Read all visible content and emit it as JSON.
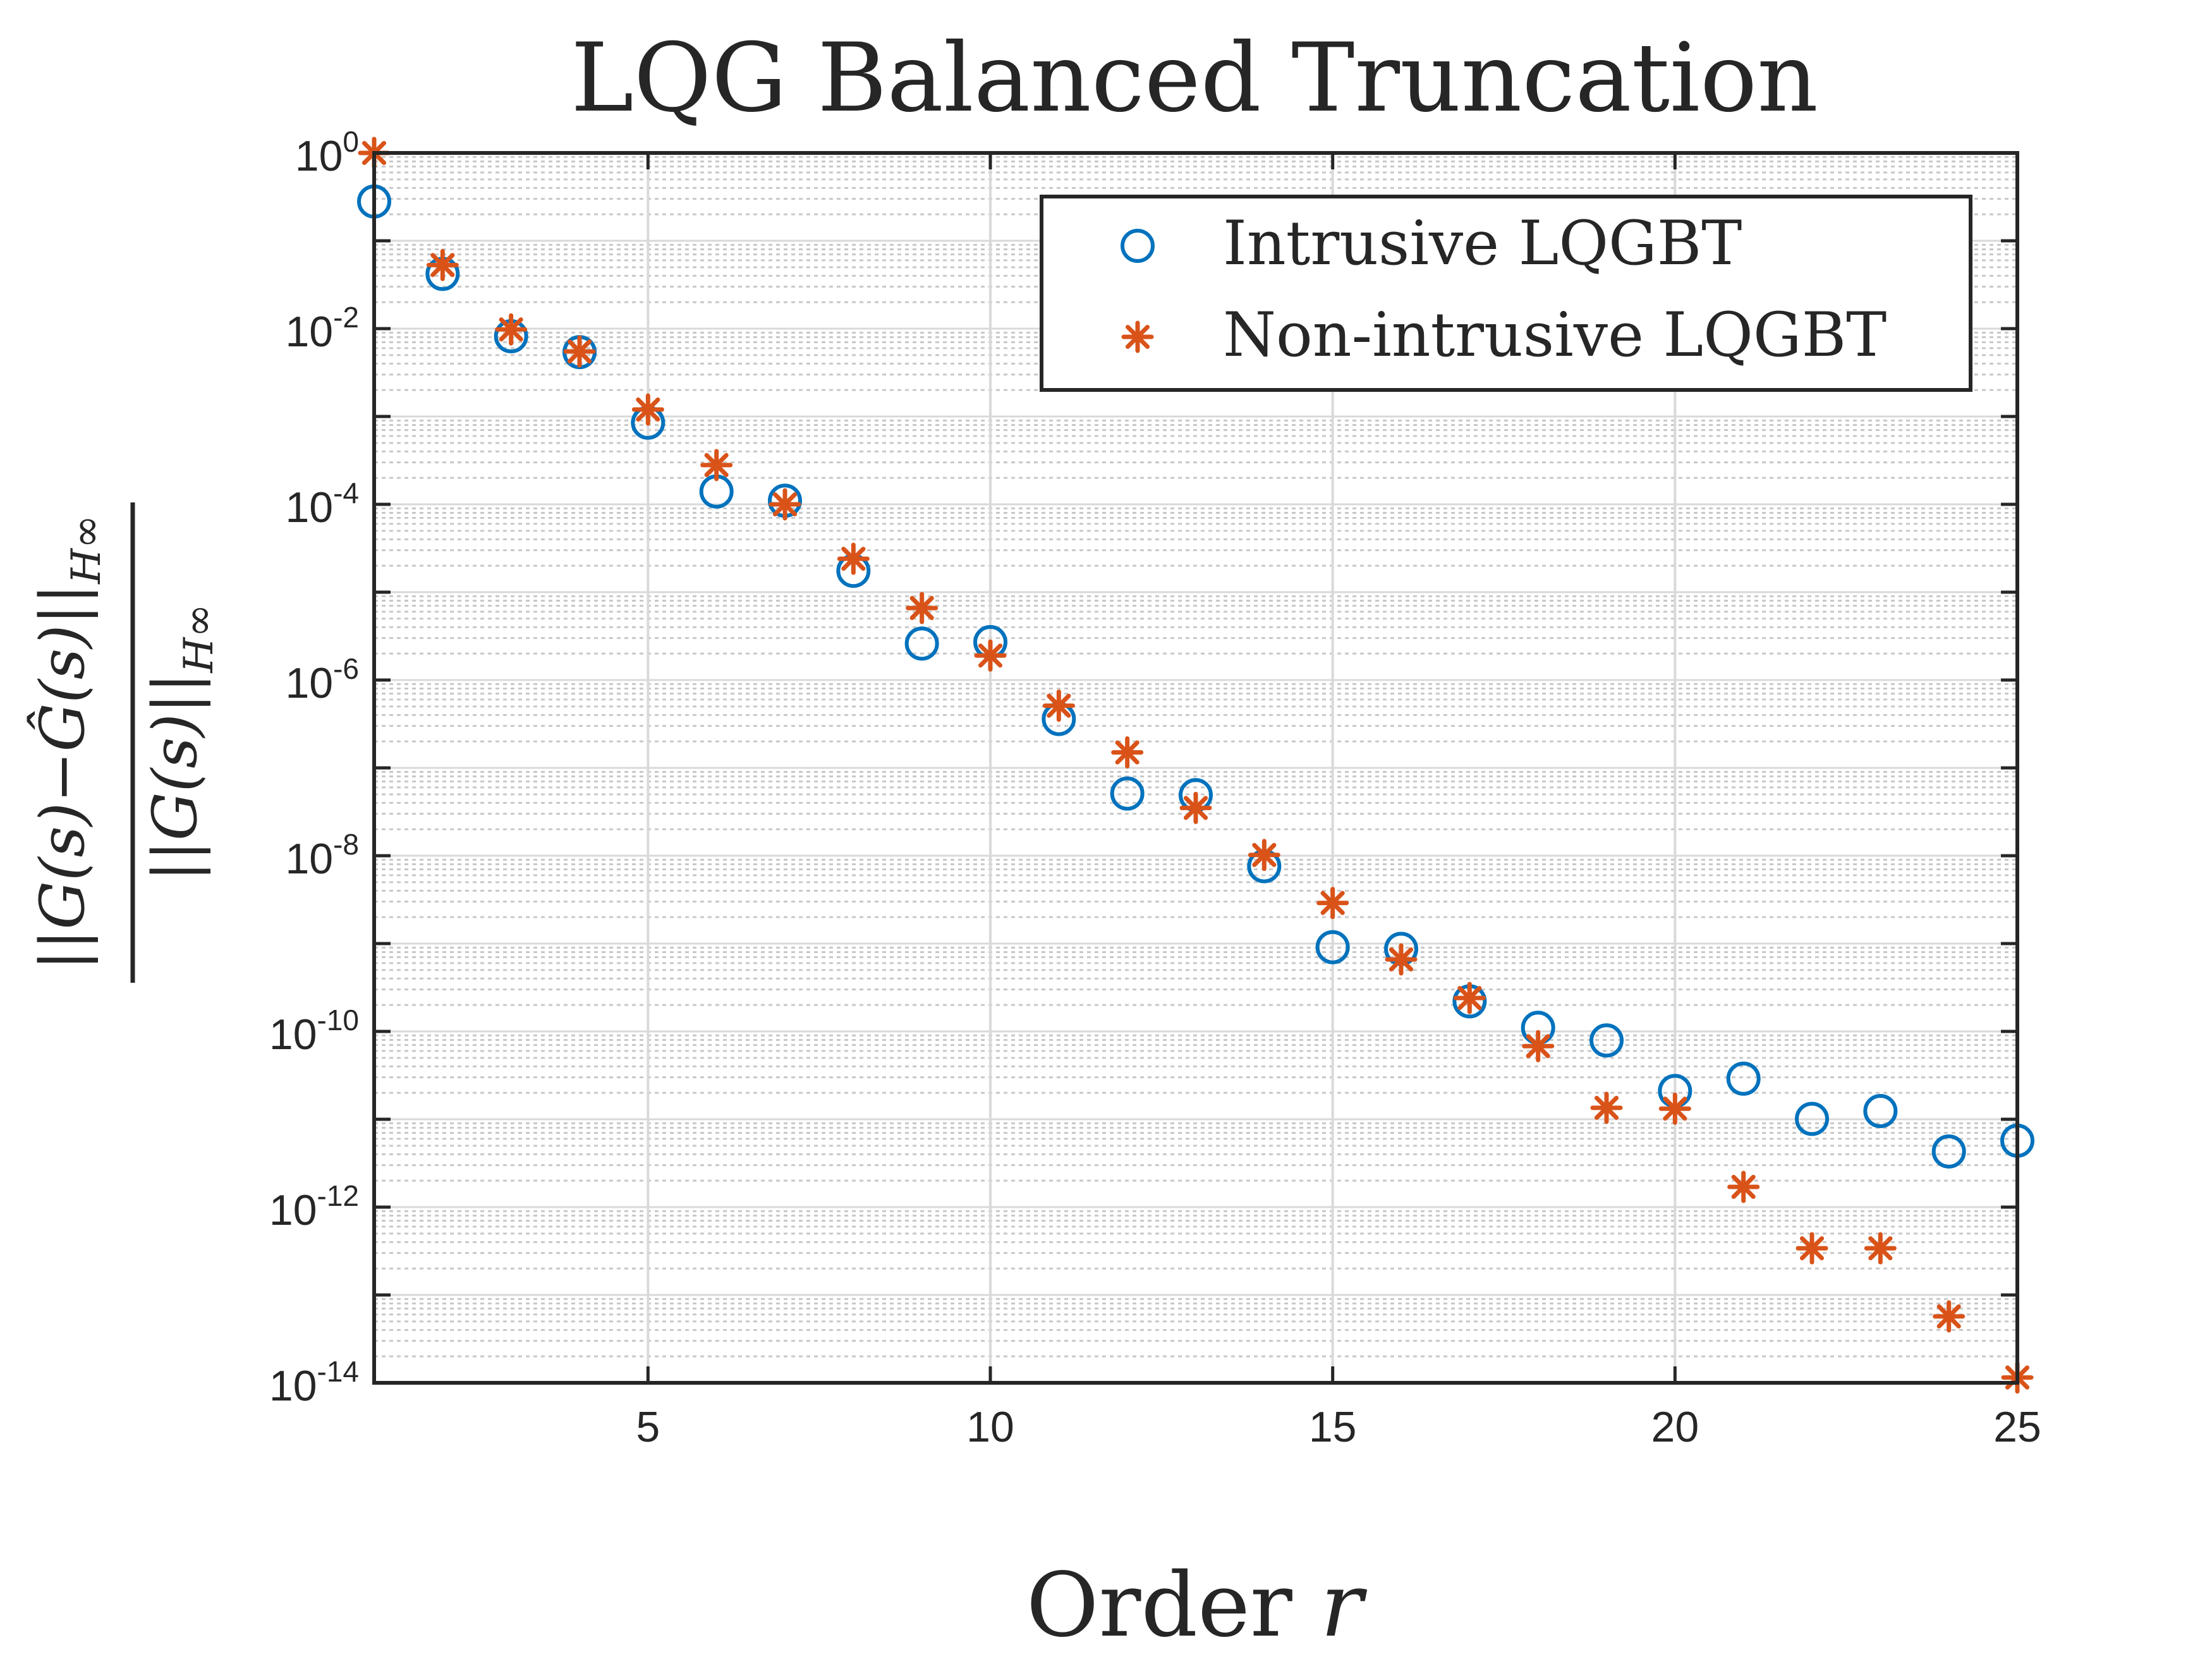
{
  "chart_data": {
    "type": "scatter",
    "title": "LQG Balanced Truncation",
    "xlabel_prefix": "Order ",
    "xlabel_var": "r",
    "ylabel": "||G(s) − Ĝ(s)||_H∞ / ||G(s)||_H∞",
    "ylabel_numerator": "||G(s)−Ĝ(s)||",
    "ylabel_denominator": "||G(s)||",
    "ylabel_norm": "H∞",
    "xlim": [
      1,
      25
    ],
    "ylim_log10": [
      -14,
      0
    ],
    "y_scale": "log",
    "grid": true,
    "minor_grid": true,
    "legend_position": "top-right",
    "x_ticks": [
      5,
      10,
      15,
      20,
      25
    ],
    "x_tick_labels": [
      "5",
      "10",
      "15",
      "20",
      "25"
    ],
    "y_ticks_log10": [
      0,
      -2,
      -4,
      -6,
      -8,
      -10,
      -12,
      -14
    ],
    "y_tick_base": "10",
    "y_tick_exponents": [
      "0",
      "-2",
      "-4",
      "-6",
      "-8",
      "-10",
      "-12",
      "-14"
    ],
    "x": [
      1,
      2,
      3,
      4,
      5,
      6,
      7,
      8,
      9,
      10,
      11,
      12,
      13,
      14,
      15,
      16,
      17,
      18,
      19,
      20,
      21,
      22,
      23,
      24,
      25
    ],
    "series": [
      {
        "name": "Intrusive LQGBT",
        "marker": "circle",
        "color": "#0072BD",
        "values": [
          0.28,
          0.042,
          0.0082,
          0.0054,
          0.00085,
          0.00014,
          0.00011,
          1.75e-05,
          2.6e-06,
          2.7e-06,
          3.6e-07,
          5.1e-08,
          4.9e-08,
          7.6e-09,
          9.1e-10,
          8.7e-10,
          2.2e-10,
          1.1e-10,
          7.9e-11,
          2.1e-11,
          2.9e-11,
          1.01e-11,
          1.24e-11,
          4.3e-12,
          5.7e-12
        ]
      },
      {
        "name": "Non-intrusive LQGBT",
        "marker": "asterisk",
        "color": "#D95319",
        "values": [
          1.0,
          0.053,
          0.0098,
          0.0055,
          0.0012,
          0.00028,
          0.0001,
          2.4e-05,
          6.6e-06,
          1.9e-06,
          5.1e-07,
          1.5e-07,
          3.5e-08,
          1.02e-08,
          2.9e-09,
          6.6e-10,
          2.4e-10,
          6.8e-11,
          1.35e-11,
          1.32e-11,
          1.7e-12,
          3.4e-13,
          3.4e-13,
          5.7e-14,
          1.15e-14
        ]
      }
    ]
  }
}
